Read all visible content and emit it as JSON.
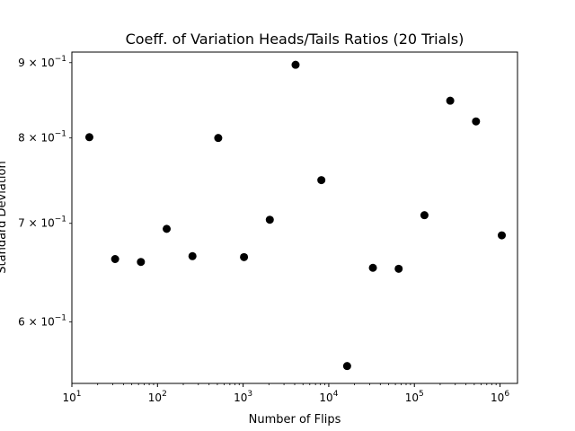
{
  "chart_data": {
    "type": "scatter",
    "title": "Coeff. of Variation Heads/Tails Ratios (20 Trials)",
    "xlabel": "Number of Flips",
    "ylabel": "Standard Deviation",
    "xscale": "log",
    "yscale": "log",
    "xlim": [
      10,
      1600000
    ],
    "ylim": [
      0.545,
      0.915
    ],
    "grid": false,
    "marker_color": "#000000",
    "x_ticks": [
      {
        "value": 10,
        "base": "10",
        "exp": "1"
      },
      {
        "value": 100,
        "base": "10",
        "exp": "2"
      },
      {
        "value": 1000,
        "base": "10",
        "exp": "3"
      },
      {
        "value": 10000,
        "base": "10",
        "exp": "4"
      },
      {
        "value": 100000,
        "base": "10",
        "exp": "5"
      },
      {
        "value": 1000000,
        "base": "10",
        "exp": "6"
      }
    ],
    "y_ticks": [
      {
        "value": 0.6,
        "mantissa": "6",
        "base": "× 10",
        "exp": "−1"
      },
      {
        "value": 0.7,
        "mantissa": "7",
        "base": "× 10",
        "exp": "−1"
      },
      {
        "value": 0.8,
        "mantissa": "8",
        "base": "× 10",
        "exp": "−1"
      },
      {
        "value": 0.9,
        "mantissa": "9",
        "base": "× 10",
        "exp": "−1"
      }
    ],
    "points": [
      {
        "x": 16,
        "y": 0.801
      },
      {
        "x": 32,
        "y": 0.662
      },
      {
        "x": 64,
        "y": 0.659
      },
      {
        "x": 128,
        "y": 0.694
      },
      {
        "x": 256,
        "y": 0.665
      },
      {
        "x": 512,
        "y": 0.8
      },
      {
        "x": 1024,
        "y": 0.664
      },
      {
        "x": 2048,
        "y": 0.704
      },
      {
        "x": 4096,
        "y": 0.897
      },
      {
        "x": 8192,
        "y": 0.749
      },
      {
        "x": 16384,
        "y": 0.56
      },
      {
        "x": 32768,
        "y": 0.653
      },
      {
        "x": 65536,
        "y": 0.652
      },
      {
        "x": 131072,
        "y": 0.709
      },
      {
        "x": 262144,
        "y": 0.848
      },
      {
        "x": 524288,
        "y": 0.821
      },
      {
        "x": 1048576,
        "y": 0.687
      }
    ]
  }
}
